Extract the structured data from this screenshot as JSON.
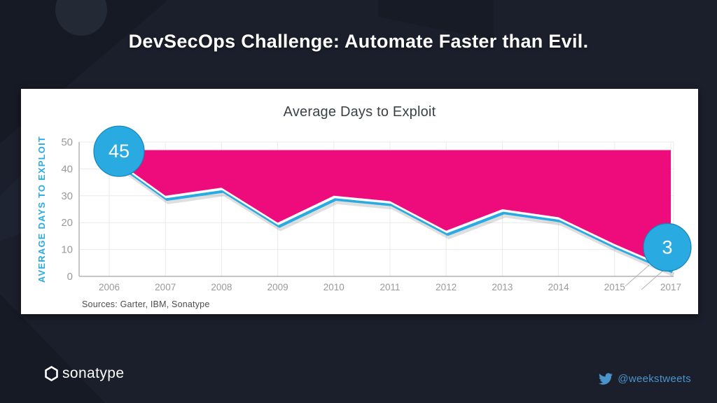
{
  "slide": {
    "title": "DevSecOps Challenge: Automate Faster than Evil.",
    "sources": "Sources: Garter, IBM, Sonatype"
  },
  "footer": {
    "logo_text": "sonatype",
    "twitter_handle": "@weekstweets"
  },
  "colors": {
    "background": "#1b1f2b",
    "panel": "#ffffff",
    "area_pink": "#ee0b7c",
    "line_cyan": "#29abe2",
    "callout_fill": "#29abe2",
    "callout_stroke": "#1583bb",
    "axis_text": "#9a9a9a",
    "grid_line": "#e9e9e9",
    "axis_line": "#c6c6c6",
    "twitter_blue": "#4a94cc"
  },
  "chart_data": {
    "type": "area",
    "title": "Average Days to Exploit",
    "ylabel": "AVERAGE DAYS TO EXPLOIT",
    "x_labels": [
      "2006",
      "2007",
      "2008",
      "2009",
      "2010",
      "2011",
      "2012",
      "2013",
      "2014",
      "2015",
      "2017"
    ],
    "values": [
      45,
      30,
      33,
      20,
      30,
      28,
      17,
      25,
      22,
      12,
      3
    ],
    "band_top": 47,
    "ylim": [
      0,
      50
    ],
    "yticks": [
      0,
      10,
      20,
      30,
      40,
      50
    ],
    "grid": true,
    "legend": "none",
    "axis_break_after": "2015",
    "callouts": [
      {
        "x_label": "2006",
        "value": 45,
        "label": "45"
      },
      {
        "x_label": "2017",
        "value": 3,
        "label": "3"
      }
    ]
  }
}
